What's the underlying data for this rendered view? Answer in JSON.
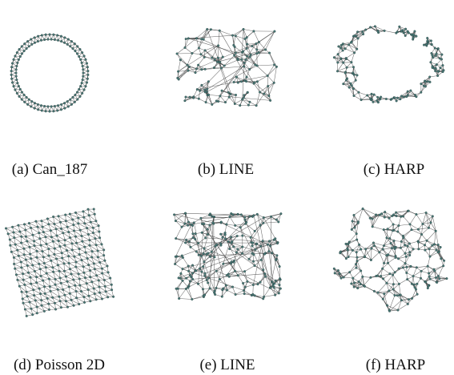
{
  "figure": {
    "node_color": "#4a7a78",
    "edge_color": "#3a3a3a",
    "panels": [
      {
        "id": "a",
        "caption": "(a) Can_187",
        "graph": "Can_187",
        "method": "",
        "layout": "ring"
      },
      {
        "id": "b",
        "caption": "(b) LINE",
        "graph": "Can_187",
        "method": "LINE",
        "layout": "scattered"
      },
      {
        "id": "c",
        "caption": "(c) HARP",
        "graph": "Can_187",
        "method": "HARP",
        "layout": "ring-noisy"
      },
      {
        "id": "d",
        "caption": "(d) Poisson 2D",
        "graph": "Poisson 2D",
        "method": "",
        "layout": "grid"
      },
      {
        "id": "e",
        "caption": "(e) LINE",
        "graph": "Poisson 2D",
        "method": "LINE",
        "layout": "cloud"
      },
      {
        "id": "f",
        "caption": "(f) HARP",
        "graph": "Poisson 2D",
        "method": "HARP",
        "layout": "blob"
      }
    ]
  }
}
